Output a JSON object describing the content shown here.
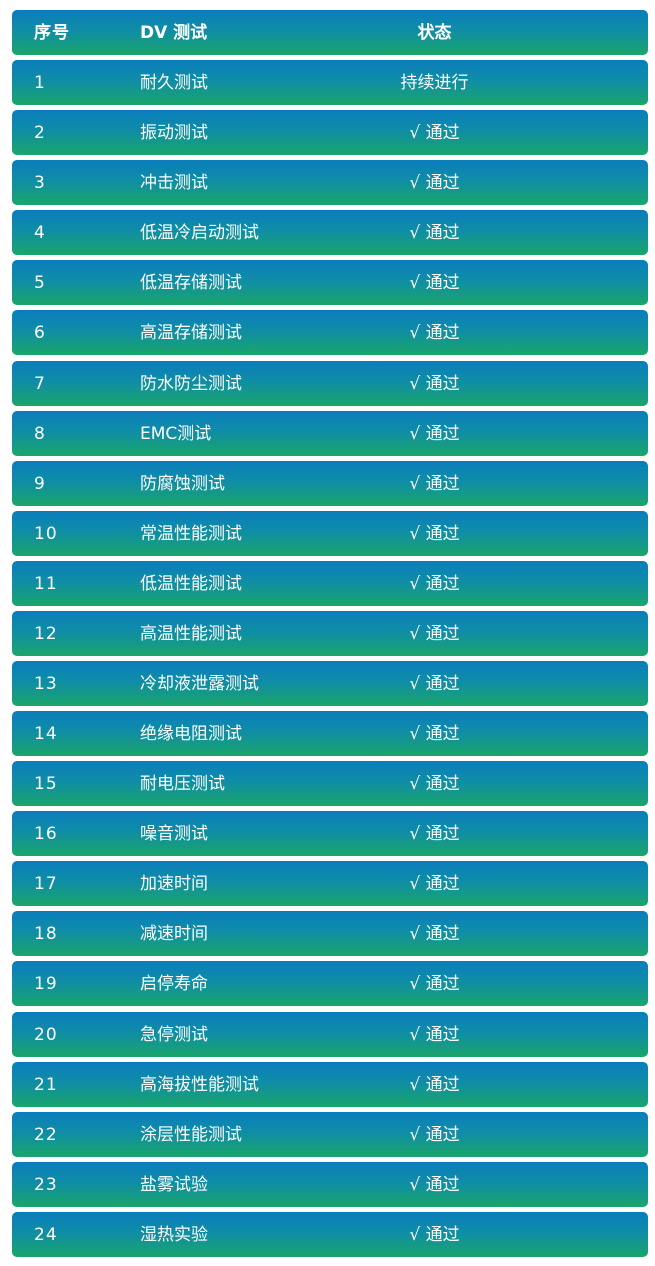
{
  "header": {
    "index": "序号",
    "test": "DV 测试",
    "status": "状态"
  },
  "rows": [
    {
      "index": "1",
      "test": "耐久测试",
      "status": "持续进行"
    },
    {
      "index": "2",
      "test": "振动测试",
      "status": "√ 通过"
    },
    {
      "index": "3",
      "test": "冲击测试",
      "status": "√ 通过"
    },
    {
      "index": "4",
      "test": "低温冷启动测试",
      "status": "√ 通过"
    },
    {
      "index": "5",
      "test": "低温存储测试",
      "status": "√ 通过"
    },
    {
      "index": "6",
      "test": "高温存储测试",
      "status": "√ 通过"
    },
    {
      "index": "7",
      "test": "防水防尘测试",
      "status": "√ 通过"
    },
    {
      "index": "8",
      "test": "EMC测试",
      "status": "√ 通过"
    },
    {
      "index": "9",
      "test": "防腐蚀测试",
      "status": "√ 通过"
    },
    {
      "index": "10",
      "test": "常温性能测试",
      "status": "√ 通过"
    },
    {
      "index": "11",
      "test": "低温性能测试",
      "status": "√ 通过"
    },
    {
      "index": "12",
      "test": "高温性能测试",
      "status": "√ 通过"
    },
    {
      "index": "13",
      "test": "冷却液泄露测试",
      "status": "√ 通过"
    },
    {
      "index": "14",
      "test": "绝缘电阻测试",
      "status": "√ 通过"
    },
    {
      "index": "15",
      "test": "耐电压测试",
      "status": "√ 通过"
    },
    {
      "index": "16",
      "test": "噪音测试",
      "status": "√ 通过"
    },
    {
      "index": "17",
      "test": "加速时间",
      "status": "√ 通过"
    },
    {
      "index": "18",
      "test": "减速时间",
      "status": "√ 通过"
    },
    {
      "index": "19",
      "test": "启停寿命",
      "status": "√ 通过"
    },
    {
      "index": "20",
      "test": "急停测试",
      "status": "√ 通过"
    },
    {
      "index": "21",
      "test": "高海拔性能测试",
      "status": "√ 通过"
    },
    {
      "index": "22",
      "test": "涂层性能测试",
      "status": "√ 通过"
    },
    {
      "index": "23",
      "test": "盐雾试验",
      "status": "√ 通过"
    },
    {
      "index": "24",
      "test": "湿热实验",
      "status": "√ 通过"
    }
  ],
  "colors": {
    "gradient_top": "#0a7dbd",
    "gradient_bottom": "#1aa56a",
    "text": "#ffffff"
  }
}
